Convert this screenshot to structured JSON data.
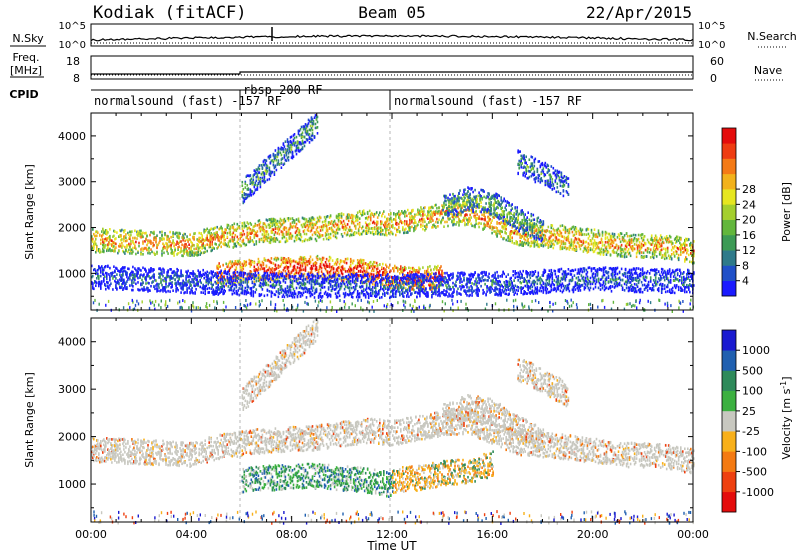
{
  "header": {
    "station": "Kodiak (fitACF)",
    "beam": "Beam 05",
    "date": "22/Apr/2015"
  },
  "strips": {
    "nsky_label": "N.Sky",
    "nsearch_label": "N.Search",
    "nsky_ticks": [
      "10^5",
      "10^0"
    ],
    "nsearch_ticks": [
      "10^5",
      "10^0"
    ],
    "freq_label": "Freq.",
    "freq_unit": "[MHz]",
    "freq_ticks": [
      "18",
      "8"
    ],
    "nave_label": "Nave",
    "nave_ticks": [
      "60",
      "0"
    ],
    "cpid_label": "CPID",
    "cpid_segments": [
      {
        "label": "normalsound (fast) -157 RF",
        "start_h": 0,
        "end_h": 6
      },
      {
        "label": "rbsp 200 RF",
        "start_h": 6,
        "end_h": 12
      },
      {
        "label": "normalsound (fast) -157 RF",
        "start_h": 12,
        "end_h": 24
      }
    ]
  },
  "chart_data": [
    {
      "type": "heatmap",
      "name": "power",
      "ylabel": "Slant Range [km]",
      "yticks": [
        1000,
        2000,
        3000,
        4000
      ],
      "ylim": [
        200,
        4500
      ],
      "xlim": [
        0,
        24
      ],
      "xticks": [
        "00:00",
        "04:00",
        "08:00",
        "12:00",
        "16:00",
        "20:00",
        "00:00"
      ],
      "colorbar": {
        "label": "Power [dB]",
        "ticks": [
          "4",
          "8",
          "12",
          "16",
          "20",
          "24",
          "28"
        ],
        "colors": [
          "#1a1aff",
          "#2050c8",
          "#2e7a8a",
          "#3c9a55",
          "#62b63c",
          "#a4cf2e",
          "#e6e620",
          "#f2b21c",
          "#f47a16",
          "#ee3c12",
          "#e40c0c"
        ]
      },
      "echo_bands": [
        {
          "t": [
            0,
            2,
            4,
            5,
            7,
            9,
            11,
            12,
            13,
            14,
            15,
            17,
            19,
            21,
            23,
            24
          ],
          "r": [
            1750,
            1700,
            1650,
            1800,
            1950,
            2000,
            2150,
            2100,
            2200,
            2300,
            2350,
            1900,
            1800,
            1650,
            1600,
            1500
          ],
          "level": 0.75
        },
        {
          "t": [
            5,
            7,
            9,
            11,
            12,
            13,
            14
          ],
          "r": [
            1000,
            1100,
            1150,
            1050,
            950,
            900,
            950
          ],
          "level": 0.95
        },
        {
          "t": [
            6,
            7,
            8,
            9
          ],
          "r": [
            2800,
            3300,
            3800,
            4300
          ],
          "level": 0.35
        },
        {
          "t": [
            14,
            15,
            16,
            17,
            18
          ],
          "r": [
            2450,
            2650,
            2550,
            2200,
            1950
          ],
          "level": 0.4
        },
        {
          "t": [
            17,
            18,
            19
          ],
          "r": [
            3450,
            3200,
            2900
          ],
          "level": 0.3
        },
        {
          "t": [
            0,
            4,
            6,
            8,
            12,
            16,
            20,
            24
          ],
          "r": [
            950,
            850,
            800,
            760,
            750,
            800,
            900,
            850
          ],
          "level": 0.2
        }
      ]
    },
    {
      "type": "heatmap",
      "name": "velocity",
      "ylabel": "Slant Range [km]",
      "yticks": [
        1000,
        2000,
        3000,
        4000
      ],
      "ylim": [
        200,
        4500
      ],
      "xlim": [
        0,
        24
      ],
      "xlabel": "Time UT",
      "xticks": [
        "00:00",
        "04:00",
        "08:00",
        "12:00",
        "16:00",
        "20:00",
        "00:00"
      ],
      "colorbar": {
        "label": "Velocity [m s",
        "label_sup": "-1",
        "label_end": "]",
        "ticks": [
          "1000",
          "500",
          "100",
          "25",
          "-25",
          "-100",
          "-500",
          "-1000"
        ],
        "colors": [
          "#1a1ad0",
          "#2060b0",
          "#2e8a5a",
          "#3cb040",
          "#c8c8c0",
          "#f8b01a",
          "#f47a12",
          "#ee4010",
          "#e40c0c"
        ]
      },
      "echo_bands": [
        {
          "t": [
            0,
            2,
            4,
            5,
            7,
            9,
            11,
            12,
            13,
            14,
            15,
            17,
            19,
            21,
            23,
            24
          ],
          "r": [
            1750,
            1700,
            1650,
            1800,
            1950,
            2000,
            2150,
            2100,
            2200,
            2300,
            2350,
            1900,
            1800,
            1650,
            1600,
            1500
          ],
          "level": 0.45
        },
        {
          "t": [
            6,
            7,
            9,
            11,
            12
          ],
          "r": [
            1100,
            1150,
            1200,
            1100,
            1000
          ],
          "level": 0.2
        },
        {
          "t": [
            12,
            13,
            14,
            15,
            16
          ],
          "r": [
            1100,
            1150,
            1250,
            1300,
            1450
          ],
          "level": 0.65
        },
        {
          "t": [
            6,
            7,
            8,
            9
          ],
          "r": [
            2800,
            3300,
            3800,
            4300
          ],
          "level": 0.45
        },
        {
          "t": [
            14,
            15,
            16,
            17,
            18
          ],
          "r": [
            2450,
            2650,
            2550,
            2200,
            1950
          ],
          "level": 0.45
        },
        {
          "t": [
            17,
            18,
            19
          ],
          "r": [
            3450,
            3200,
            2900
          ],
          "level": 0.45
        }
      ]
    }
  ]
}
